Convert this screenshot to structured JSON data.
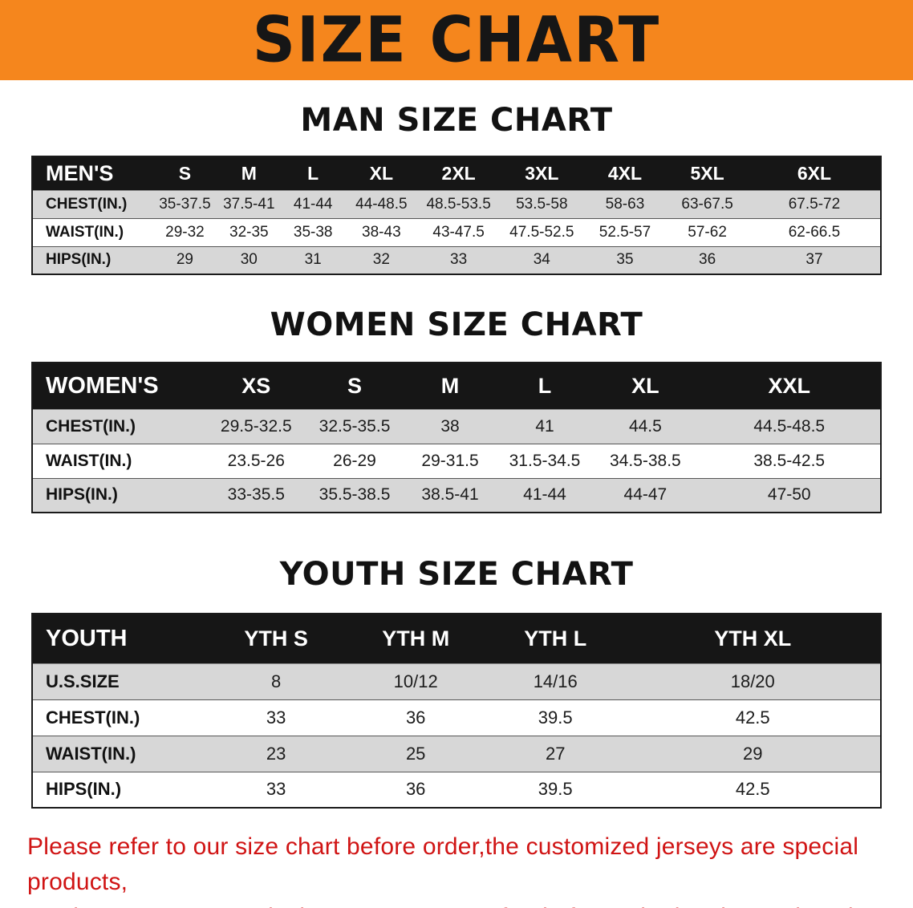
{
  "banner": {
    "title": "SIZE CHART",
    "bg_color": "#f5861d",
    "text_color": "#161616"
  },
  "colors": {
    "table_header_bg": "#161616",
    "table_header_text": "#ffffff",
    "row_shaded": "#d7d7d7",
    "disclaimer_text": "#d01414"
  },
  "men": {
    "heading": "MAN SIZE CHART",
    "header": [
      "MEN'S",
      "S",
      "M",
      "L",
      "XL",
      "2XL",
      "3XL",
      "4XL",
      "5XL",
      "6XL"
    ],
    "rows": [
      {
        "label": "CHEST(IN.)",
        "values": [
          "35-37.5",
          "37.5-41",
          "41-44",
          "44-48.5",
          "48.5-53.5",
          "53.5-58",
          "58-63",
          "63-67.5",
          "67.5-72"
        ]
      },
      {
        "label": "WAIST(IN.)",
        "values": [
          "29-32",
          "32-35",
          "35-38",
          "38-43",
          "43-47.5",
          "47.5-52.5",
          "52.5-57",
          "57-62",
          "62-66.5"
        ]
      },
      {
        "label": "HIPS(IN.)",
        "values": [
          "29",
          "30",
          "31",
          "32",
          "33",
          "34",
          "35",
          "36",
          "37"
        ]
      }
    ]
  },
  "women": {
    "heading": "WOMEN SIZE CHART",
    "header": [
      "WOMEN'S",
      "XS",
      "S",
      "M",
      "L",
      "XL",
      "XXL"
    ],
    "rows": [
      {
        "label": "CHEST(IN.)",
        "values": [
          "29.5-32.5",
          "32.5-35.5",
          "38",
          "41",
          "44.5",
          "44.5-48.5"
        ]
      },
      {
        "label": "WAIST(IN.)",
        "values": [
          "23.5-26",
          "26-29",
          "29-31.5",
          "31.5-34.5",
          "34.5-38.5",
          "38.5-42.5"
        ]
      },
      {
        "label": "HIPS(IN.)",
        "values": [
          "33-35.5",
          "35.5-38.5",
          "38.5-41",
          "41-44",
          "44-47",
          "47-50"
        ]
      }
    ]
  },
  "youth": {
    "heading": "YOUTH SIZE CHART",
    "header": [
      "YOUTH",
      "YTH S",
      "YTH M",
      "YTH L",
      "YTH XL"
    ],
    "rows": [
      {
        "label": "U.S.SIZE",
        "values": [
          "8",
          "10/12",
          "14/16",
          "18/20"
        ]
      },
      {
        "label": "CHEST(IN.)",
        "values": [
          "33",
          "36",
          "39.5",
          "42.5"
        ]
      },
      {
        "label": "WAIST(IN.)",
        "values": [
          "23",
          "25",
          "27",
          "29"
        ]
      },
      {
        "label": "HIPS(IN.)",
        "values": [
          "33",
          "36",
          "39.5",
          "42.5"
        ]
      }
    ]
  },
  "disclaimer": {
    "line1": "Please refer to our size chart before order,the customized jerseys are special products,",
    "line2": "we don't accept cancel, change, teturn or refund after order has been placed!"
  }
}
